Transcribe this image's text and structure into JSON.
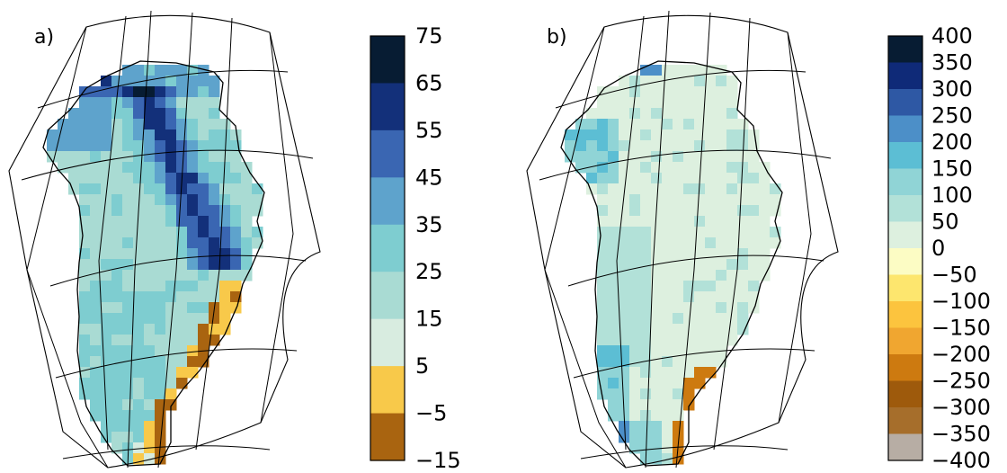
{
  "figure": {
    "panels": [
      {
        "label": "a)",
        "colorbar_labels": [
          "75",
          "65",
          "55",
          "45",
          "35",
          "25",
          "15",
          "5",
          "−5",
          "−15"
        ]
      },
      {
        "label": "b)",
        "colorbar_labels": [
          "400",
          "350",
          "300",
          "250",
          "200",
          "150",
          "100",
          "50",
          "0",
          "−50",
          "−100",
          "−150",
          "−200",
          "−250",
          "−300",
          "−350",
          "−400"
        ]
      }
    ]
  },
  "chart_data": [
    {
      "type": "heatmap",
      "panel": "a)",
      "map_region": "Greenland",
      "colorbar": {
        "bounds": [
          -15,
          -5,
          5,
          15,
          25,
          35,
          45,
          55,
          65,
          75
        ],
        "colors": [
          "#a96410",
          "#f8c94a",
          "#d8ece0",
          "#a9dbd3",
          "#7ecdd0",
          "#5ea3cc",
          "#3a66b2",
          "#13307a",
          "#071c33"
        ]
      },
      "pattern": "highest values (45 to 65) along a band in the north-central interior and along the northwest coast; 15 to 35 over much of the south and central west; negative values (-5 to -15) along the southeast coast"
    },
    {
      "type": "heatmap",
      "panel": "b)",
      "map_region": "Greenland",
      "colorbar": {
        "bounds": [
          -400,
          -350,
          -300,
          -250,
          -200,
          -150,
          -100,
          -50,
          0,
          50,
          100,
          150,
          200,
          250,
          300,
          350,
          400
        ],
        "colors": [
          "#b7ada4",
          "#a66e2b",
          "#9e5a0c",
          "#cd7a10",
          "#f0a630",
          "#fcc43e",
          "#fde66e",
          "#fcfcc4",
          "#ddf0df",
          "#b2e1d8",
          "#90d4d6",
          "#5cbed4",
          "#4c8fc8",
          "#2e58a4",
          "#0f2a78",
          "#071c33"
        ]
      },
      "pattern": "mostly 0 to 100 across the interior; 100 to 250 along the southwest and northwest coasts; negative values down to -300 along the southeast coast"
    }
  ]
}
